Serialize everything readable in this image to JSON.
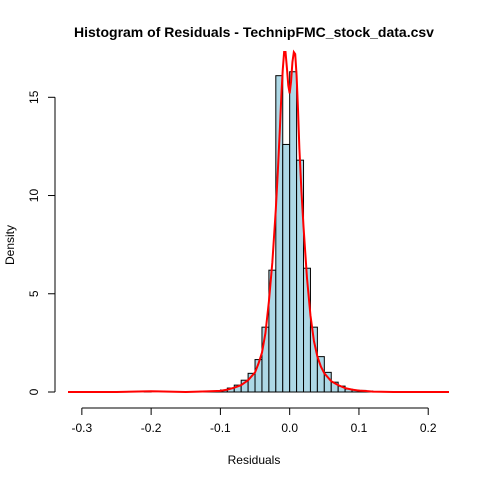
{
  "chart_data": {
    "type": "histogram",
    "title": "Histogram of Residuals - TechnipFMC_stock_data.csv",
    "xlabel": "Residuals",
    "ylabel": "Density",
    "xlim": [
      -0.32,
      0.23
    ],
    "ylim": [
      0,
      17
    ],
    "x_ticks": [
      -0.3,
      -0.2,
      -0.1,
      0.0,
      0.1,
      0.2
    ],
    "x_tick_labels": [
      "-0.3",
      "-0.2",
      "-0.1",
      "0.0",
      "0.1",
      "0.2"
    ],
    "y_ticks": [
      0,
      5,
      10,
      15
    ],
    "y_tick_labels": [
      "0",
      "5",
      "10",
      "15"
    ],
    "bin_width": 0.01,
    "bins": [
      {
        "x0": -0.21,
        "x1": -0.2,
        "density": 0.05
      },
      {
        "x0": -0.13,
        "x1": -0.12,
        "density": 0.03
      },
      {
        "x0": -0.12,
        "x1": -0.11,
        "density": 0.05
      },
      {
        "x0": -0.11,
        "x1": -0.1,
        "density": 0.05
      },
      {
        "x0": -0.1,
        "x1": -0.09,
        "density": 0.1
      },
      {
        "x0": -0.09,
        "x1": -0.08,
        "density": 0.2
      },
      {
        "x0": -0.08,
        "x1": -0.07,
        "density": 0.35
      },
      {
        "x0": -0.07,
        "x1": -0.06,
        "density": 0.6
      },
      {
        "x0": -0.06,
        "x1": -0.05,
        "density": 0.95
      },
      {
        "x0": -0.05,
        "x1": -0.04,
        "density": 1.65
      },
      {
        "x0": -0.04,
        "x1": -0.03,
        "density": 3.3
      },
      {
        "x0": -0.03,
        "x1": -0.02,
        "density": 6.2
      },
      {
        "x0": -0.02,
        "x1": -0.01,
        "density": 16.1
      },
      {
        "x0": -0.01,
        "x1": 0.0,
        "density": 12.6
      },
      {
        "x0": 0.0,
        "x1": 0.01,
        "density": 16.3
      },
      {
        "x0": 0.01,
        "x1": 0.02,
        "density": 11.8
      },
      {
        "x0": 0.02,
        "x1": 0.03,
        "density": 6.3
      },
      {
        "x0": 0.03,
        "x1": 0.04,
        "density": 3.3
      },
      {
        "x0": 0.04,
        "x1": 0.05,
        "density": 1.8
      },
      {
        "x0": 0.05,
        "x1": 0.06,
        "density": 1.0
      },
      {
        "x0": 0.06,
        "x1": 0.07,
        "density": 0.5
      },
      {
        "x0": 0.07,
        "x1": 0.08,
        "density": 0.3
      },
      {
        "x0": 0.08,
        "x1": 0.09,
        "density": 0.15
      },
      {
        "x0": 0.09,
        "x1": 0.1,
        "density": 0.1
      },
      {
        "x0": 0.1,
        "x1": 0.11,
        "density": 0.08
      },
      {
        "x0": 0.11,
        "x1": 0.12,
        "density": 0.05
      }
    ],
    "density_curve": {
      "x": [
        -0.32,
        -0.25,
        -0.21,
        -0.2,
        -0.19,
        -0.15,
        -0.12,
        -0.1,
        -0.09,
        -0.08,
        -0.07,
        -0.06,
        -0.05,
        -0.045,
        -0.04,
        -0.035,
        -0.03,
        -0.025,
        -0.02,
        -0.017,
        -0.014,
        -0.012,
        -0.01,
        -0.008,
        -0.006,
        -0.004,
        -0.002,
        0.0,
        0.002,
        0.004,
        0.006,
        0.008,
        0.01,
        0.012,
        0.014,
        0.017,
        0.02,
        0.025,
        0.03,
        0.035,
        0.04,
        0.045,
        0.05,
        0.06,
        0.07,
        0.08,
        0.09,
        0.1,
        0.11,
        0.12,
        0.15,
        0.23
      ],
      "y": [
        0.0,
        0.0,
        0.03,
        0.04,
        0.03,
        0.0,
        0.03,
        0.06,
        0.12,
        0.22,
        0.35,
        0.6,
        1.0,
        1.45,
        2.0,
        3.0,
        4.6,
        6.6,
        9.3,
        11.3,
        13.5,
        15.1,
        16.4,
        17.4,
        17.4,
        16.5,
        15.6,
        15.2,
        15.8,
        16.8,
        17.3,
        17.2,
        16.1,
        14.4,
        12.4,
        10.2,
        8.4,
        5.8,
        3.9,
        2.6,
        1.8,
        1.3,
        0.95,
        0.55,
        0.35,
        0.2,
        0.12,
        0.07,
        0.05,
        0.02,
        0.0,
        0.0
      ]
    },
    "grid": false,
    "colors": {
      "bar_fill": "#add8e6",
      "bar_stroke": "#000000",
      "curve": "#ff0000",
      "axis": "#000000"
    }
  }
}
